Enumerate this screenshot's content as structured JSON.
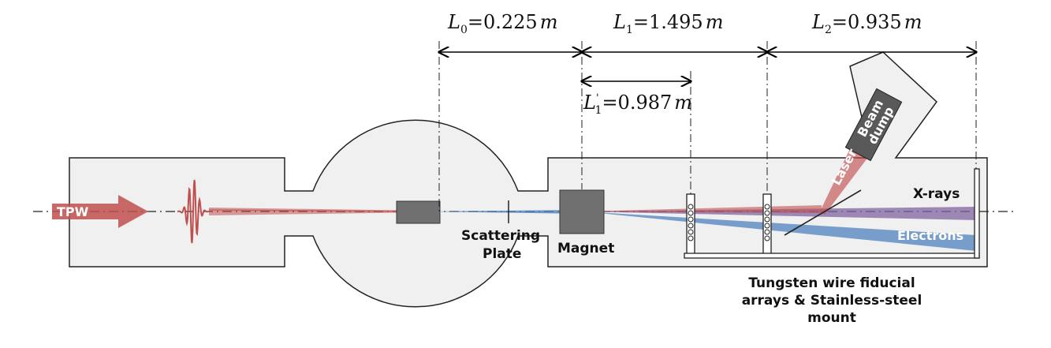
{
  "labels": {
    "tpw": "TPW",
    "scattering_plate_1": "Scattering",
    "scattering_plate_2": "Plate",
    "magnet": "Magnet",
    "xrays": "X-rays",
    "electrons": "Electrons",
    "laser": "Laser",
    "beam_dump_1": "Beam",
    "beam_dump_2": "dump",
    "mount_1": "Tungsten wire fiducial",
    "mount_2": "arrays & Stainless-steel",
    "mount_3": "mount"
  },
  "dimensions": {
    "L0": {
      "symbol": "L",
      "sub": "0",
      "value": "=0.225",
      "unit": "m"
    },
    "L1": {
      "symbol": "L",
      "sub": "1",
      "value": "=1.495",
      "unit": "m"
    },
    "L2": {
      "symbol": "L",
      "sub": "2",
      "value": "=0.935",
      "unit": "m"
    },
    "L1p": {
      "symbol": "L",
      "sub": "1",
      "prime": "'",
      "value": "=0.987",
      "unit": "m"
    }
  },
  "colors": {
    "chamber_fill": "#f0f0f0",
    "laser_red": "#c0504d",
    "electron_blue": "#4f81bd",
    "xray_purple": "#8064a2",
    "block_gray": "#707070"
  }
}
